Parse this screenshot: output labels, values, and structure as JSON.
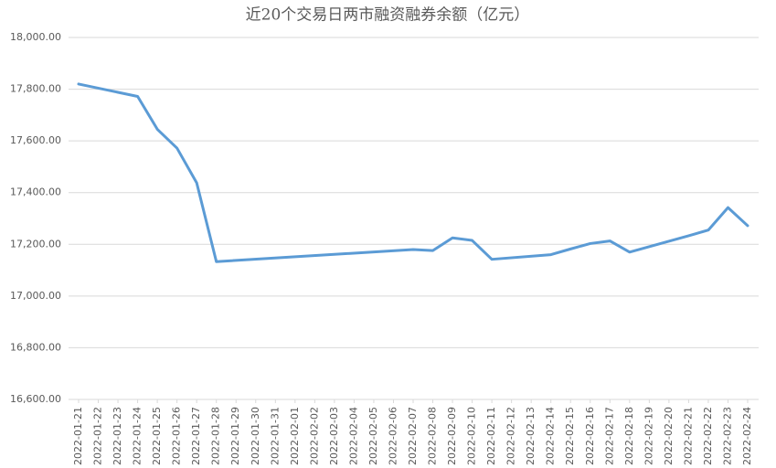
{
  "chart_data": {
    "type": "line",
    "title": "近20个交易日两市融资融券余额（亿元）",
    "x": [
      "2022-01-21",
      "2022-01-24",
      "2022-01-25",
      "2022-01-26",
      "2022-01-27",
      "2022-01-28",
      "2022-02-07",
      "2022-02-08",
      "2022-02-09",
      "2022-02-10",
      "2022-02-11",
      "2022-02-14",
      "2022-02-15",
      "2022-02-16",
      "2022-02-17",
      "2022-02-18",
      "2022-02-21",
      "2022-02-22",
      "2022-02-23",
      "2022-02-24"
    ],
    "series": [
      {
        "color": "#5b9bd5",
        "values": [
          17820,
          17772,
          17645,
          17572,
          17438,
          17133,
          17180,
          17176,
          17225,
          17215,
          17142,
          17160,
          17182,
          17203,
          17213,
          17170,
          17233,
          17255,
          17342,
          17272
        ]
      }
    ],
    "xlim": [
      "2022-01-21",
      "2022-02-24"
    ],
    "xticks": [
      "2022-01-21",
      "2022-01-22",
      "2022-01-23",
      "2022-01-24",
      "2022-01-25",
      "2022-01-26",
      "2022-01-27",
      "2022-01-28",
      "2022-01-29",
      "2022-01-30",
      "2022-01-31",
      "2022-02-01",
      "2022-02-02",
      "2022-02-03",
      "2022-02-04",
      "2022-02-05",
      "2022-02-06",
      "2022-02-07",
      "2022-02-08",
      "2022-02-09",
      "2022-02-10",
      "2022-02-11",
      "2022-02-12",
      "2022-02-13",
      "2022-02-14",
      "2022-02-15",
      "2022-02-16",
      "2022-02-17",
      "2022-02-18",
      "2022-02-19",
      "2022-02-20",
      "2022-02-21",
      "2022-02-22",
      "2022-02-23",
      "2022-02-24"
    ],
    "ylim": [
      16600,
      18000
    ],
    "yticks": [
      {
        "value": 16600,
        "label": "16,600.00"
      },
      {
        "value": 16800,
        "label": "16,800.00"
      },
      {
        "value": 17000,
        "label": "17,000.00"
      },
      {
        "value": 17200,
        "label": "17,200.00"
      },
      {
        "value": 17400,
        "label": "17,400.00"
      },
      {
        "value": 17600,
        "label": "17,600.00"
      },
      {
        "value": 17800,
        "label": "17,800.00"
      },
      {
        "value": 18000,
        "label": "18,000.00"
      }
    ],
    "grid": true
  }
}
